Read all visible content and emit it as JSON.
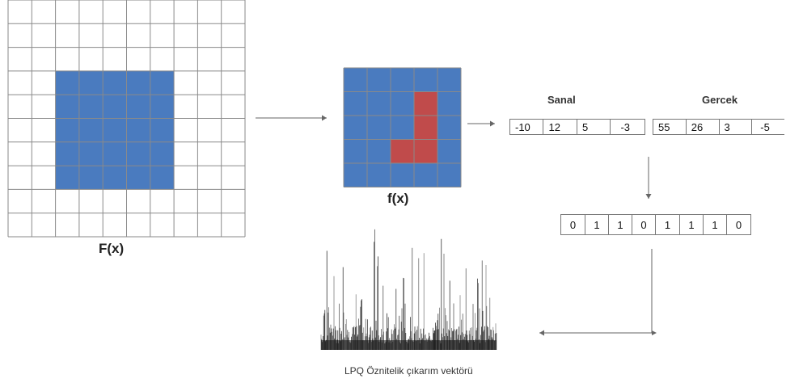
{
  "labels": {
    "big_image": "F(x)",
    "patch": "f(x)",
    "imag_header": "Sanal",
    "real_header": "Gercek",
    "histogram_caption": "LPQ Öznitelik çıkarım vektörü"
  },
  "imag_values": [
    "-10",
    "12",
    "5",
    "-3"
  ],
  "real_values": [
    "55",
    "26",
    "3",
    "-5"
  ],
  "binary_code": [
    "0",
    "1",
    "1",
    "0",
    "1",
    "1",
    "1",
    "0"
  ],
  "colors": {
    "fill_blue": "#4a7bbf",
    "highlight_red": "#c04b4b",
    "grid_line": "#8a8a8a",
    "arrow": "#666666",
    "histogram": "#111111"
  }
}
